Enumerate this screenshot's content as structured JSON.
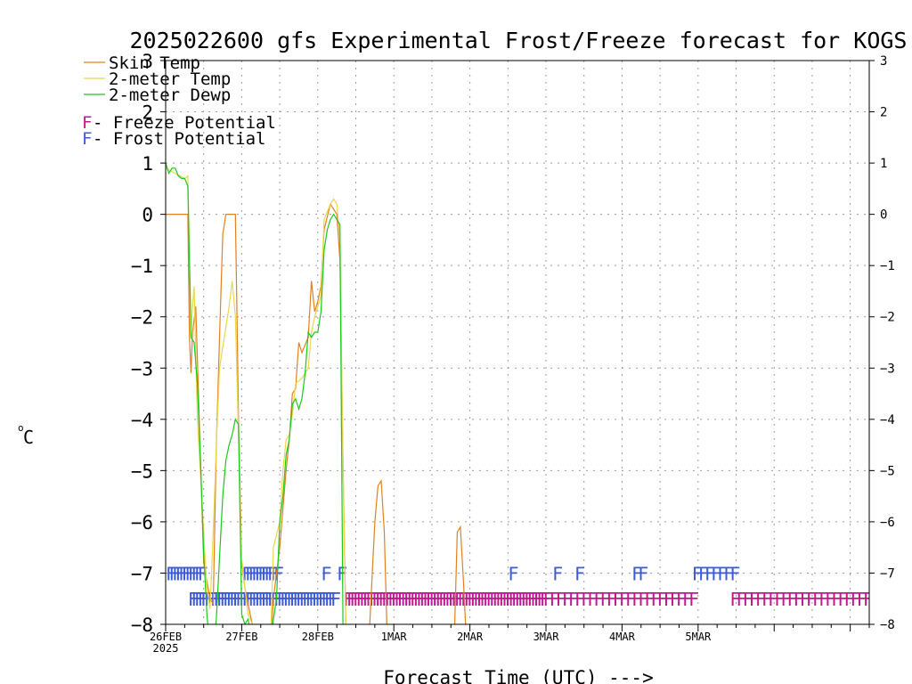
{
  "chart_data": {
    "type": "line",
    "title": "2025022600 gfs Experimental Frost/Freeze forecast for KOGS",
    "xlabel": "Forecast Time (UTC) --->",
    "ylabel": "°C",
    "ylabel_text": "C",
    "ylabel_degree": "o",
    "xlim_hours": [
      0,
      222
    ],
    "ylim": [
      -8,
      3
    ],
    "yticks": [
      3,
      2,
      1,
      0,
      -1,
      -2,
      -3,
      -4,
      -5,
      -6,
      -7,
      -8
    ],
    "yticks_labels": [
      "3",
      "2",
      "1",
      "0",
      "−1",
      "−2",
      "−3",
      "−4",
      "−5",
      "−6",
      "−7",
      "−8"
    ],
    "xticks": [
      {
        "hour": 0,
        "label": "26FEB",
        "sublabel": "2025"
      },
      {
        "hour": 24,
        "label": "27FEB"
      },
      {
        "hour": 48,
        "label": "28FEB"
      },
      {
        "hour": 72,
        "label": "1MAR"
      },
      {
        "hour": 96,
        "label": "2MAR"
      },
      {
        "hour": 120,
        "label": "3MAR"
      },
      {
        "hour": 144,
        "label": "4MAR"
      },
      {
        "hour": 168,
        "label": "5MAR"
      }
    ],
    "grid": true,
    "legend": [
      {
        "label": "Skin Temp",
        "color": "#e08020"
      },
      {
        "label": "2-meter Temp",
        "color": "#e8d84a"
      },
      {
        "label": "2-meter Dewp",
        "color": "#1cc81c"
      }
    ],
    "potential_legend": [
      {
        "symbol": "F",
        "label": " - Freeze Potential",
        "color": "#c01890"
      },
      {
        "symbol": "F",
        "label": " - Frost Potential",
        "color": "#3c5ad8"
      }
    ],
    "series": [
      {
        "name": "Skin Temp",
        "color": "#e08020",
        "points": [
          [
            0,
            0
          ],
          [
            7,
            0
          ],
          [
            7.5,
            -2.4
          ],
          [
            8,
            -3.1
          ],
          [
            8.5,
            -2.3
          ],
          [
            9.5,
            -1.8
          ],
          [
            12,
            -6.8
          ],
          [
            14,
            -7.5
          ],
          [
            15,
            -7.6
          ],
          [
            16,
            -4.5
          ],
          [
            17,
            -2.4
          ],
          [
            18,
            -0.4
          ],
          [
            19,
            0
          ],
          [
            22,
            0
          ],
          [
            22.5,
            -2
          ],
          [
            23,
            -4
          ],
          [
            24,
            -6.8
          ],
          [
            25,
            -7.3
          ],
          [
            26,
            -7.6
          ],
          [
            28,
            -8.2
          ],
          [
            30,
            -8.5
          ],
          [
            33,
            -8.5
          ],
          [
            34,
            -7.5
          ],
          [
            36,
            -6.5
          ],
          [
            38,
            -5
          ],
          [
            39,
            -4.4
          ],
          [
            40,
            -3.5
          ],
          [
            41,
            -3.4
          ],
          [
            42,
            -2.5
          ],
          [
            43,
            -2.7
          ],
          [
            45,
            -2.4
          ],
          [
            46,
            -1.3
          ],
          [
            47,
            -1.9
          ],
          [
            48,
            -1.7
          ],
          [
            49,
            -1.4
          ],
          [
            50,
            -0.3
          ],
          [
            52,
            0.2
          ],
          [
            53,
            0.1
          ],
          [
            54,
            0
          ],
          [
            55,
            -0.9
          ],
          [
            56,
            -5
          ],
          [
            57,
            -8.5
          ],
          [
            64,
            -8.5
          ],
          [
            66,
            -6
          ],
          [
            67,
            -5.3
          ],
          [
            68,
            -5.2
          ],
          [
            69,
            -6.2
          ],
          [
            70,
            -8.5
          ],
          [
            91,
            -8.5
          ],
          [
            92,
            -6.2
          ],
          [
            93,
            -6.1
          ],
          [
            94,
            -7.2
          ],
          [
            95,
            -8.5
          ],
          [
            222,
            -8.5
          ]
        ]
      },
      {
        "name": "2-meter Temp",
        "color": "#e8d84a",
        "points": [
          [
            0,
            0.9
          ],
          [
            3,
            0.8
          ],
          [
            6,
            0.7
          ],
          [
            7,
            0.75
          ],
          [
            8,
            -2.2
          ],
          [
            9,
            -1.4
          ],
          [
            10,
            -4
          ],
          [
            12,
            -6.2
          ],
          [
            13,
            -7.3
          ],
          [
            14,
            -7.7
          ],
          [
            15,
            -6.2
          ],
          [
            16,
            -4.5
          ],
          [
            17,
            -3
          ],
          [
            20,
            -1.8
          ],
          [
            21,
            -1.3
          ],
          [
            22,
            -2
          ],
          [
            24,
            -6.7
          ],
          [
            25,
            -7.3
          ],
          [
            26,
            -7.8
          ],
          [
            28,
            -8.1
          ],
          [
            30,
            -8.5
          ],
          [
            33,
            -8.5
          ],
          [
            34,
            -6.5
          ],
          [
            36,
            -6
          ],
          [
            37,
            -5
          ],
          [
            38,
            -4.4
          ],
          [
            39,
            -4.3
          ],
          [
            40,
            -3.9
          ],
          [
            41,
            -3.3
          ],
          [
            43,
            -3.2
          ],
          [
            45,
            -3
          ],
          [
            46,
            -2.3
          ],
          [
            47,
            -2
          ],
          [
            48,
            -1.8
          ],
          [
            49,
            -1.6
          ],
          [
            50,
            -0.1
          ],
          [
            52,
            0.2
          ],
          [
            53,
            0.3
          ],
          [
            54,
            0.2
          ],
          [
            55,
            -0.5
          ],
          [
            56,
            -5
          ],
          [
            57,
            -8.5
          ],
          [
            222,
            -8.5
          ]
        ]
      },
      {
        "name": "2-meter Dewp",
        "color": "#1cc81c",
        "points": [
          [
            0,
            1
          ],
          [
            1,
            0.8
          ],
          [
            2,
            0.9
          ],
          [
            3,
            0.9
          ],
          [
            4,
            0.75
          ],
          [
            5,
            0.7
          ],
          [
            6,
            0.7
          ],
          [
            7,
            0.55
          ],
          [
            8,
            -2.4
          ],
          [
            9,
            -2.5
          ],
          [
            10,
            -3.3
          ],
          [
            11,
            -4.8
          ],
          [
            12,
            -6.6
          ],
          [
            13,
            -7.8
          ],
          [
            14,
            -8.5
          ],
          [
            15,
            -8.5
          ],
          [
            16,
            -7.9
          ],
          [
            17,
            -6.7
          ],
          [
            18,
            -5.5
          ],
          [
            19,
            -4.8
          ],
          [
            20,
            -4.5
          ],
          [
            21,
            -4.3
          ],
          [
            22,
            -4
          ],
          [
            23,
            -4.1
          ],
          [
            24,
            -7.8
          ],
          [
            25,
            -8
          ],
          [
            26,
            -7.9
          ],
          [
            27,
            -8.2
          ],
          [
            28,
            -8.5
          ],
          [
            33,
            -8.5
          ],
          [
            34,
            -7.9
          ],
          [
            35,
            -7.5
          ],
          [
            36,
            -6
          ],
          [
            37,
            -5.5
          ],
          [
            38,
            -4.7
          ],
          [
            39,
            -4.4
          ],
          [
            40,
            -3.7
          ],
          [
            41,
            -3.6
          ],
          [
            42,
            -3.8
          ],
          [
            43,
            -3.6
          ],
          [
            44,
            -3.1
          ],
          [
            45,
            -2.3
          ],
          [
            46,
            -2.4
          ],
          [
            47,
            -2.3
          ],
          [
            48,
            -2.3
          ],
          [
            49,
            -1.9
          ],
          [
            50,
            -0.7
          ],
          [
            51,
            -0.3
          ],
          [
            52,
            -0.1
          ],
          [
            53,
            0
          ],
          [
            54,
            -0.1
          ],
          [
            55,
            -0.2
          ],
          [
            56,
            -8.5
          ],
          [
            222,
            -8.5
          ]
        ]
      }
    ],
    "frost_potential": [
      {
        "row": "upper",
        "hours": [
          0,
          1,
          2,
          3,
          4,
          5,
          6,
          7,
          8,
          9,
          10,
          24,
          25,
          26,
          27,
          28,
          29,
          30,
          31,
          32,
          33,
          34
        ]
      },
      {
        "row": "upper",
        "hours": [
          49,
          54,
          108,
          122,
          129,
          147,
          149,
          166,
          168,
          170,
          172,
          174,
          176,
          178
        ]
      },
      {
        "row": "lower",
        "hours": [
          7,
          8,
          9,
          10,
          11,
          12,
          13,
          14,
          15,
          16,
          17,
          18,
          19,
          20,
          21,
          22,
          23,
          24,
          25,
          26,
          27,
          28,
          29,
          30,
          31,
          32,
          33,
          34,
          35,
          36,
          37,
          38,
          39,
          40,
          41,
          42,
          43,
          44,
          45,
          46,
          47,
          48,
          49,
          50,
          51,
          52
        ]
      }
    ],
    "freeze_potential": [
      {
        "row": "lower",
        "hours": [
          56,
          57,
          58,
          59,
          60,
          61,
          62,
          63,
          64,
          65,
          66,
          67,
          68,
          69,
          70,
          71,
          72,
          73,
          74,
          75,
          76,
          77,
          78,
          79,
          80,
          81,
          82,
          83,
          84,
          85,
          86,
          87,
          88,
          89,
          90,
          91,
          92,
          93,
          94,
          95,
          96,
          97,
          98,
          99,
          100,
          101,
          102,
          103,
          104,
          105,
          106,
          107,
          108,
          109,
          110,
          111,
          112,
          113,
          114,
          115,
          116,
          117,
          118
        ]
      },
      {
        "row": "lower",
        "hours": [
          119,
          121,
          123,
          125,
          127,
          129,
          131,
          133,
          135,
          137,
          139,
          141,
          143,
          145,
          147,
          149,
          151,
          153,
          155,
          157,
          159,
          161,
          163,
          165
        ]
      },
      {
        "row": "lower",
        "hours": [
          178,
          180,
          182,
          184,
          186,
          188,
          190,
          192,
          194,
          196,
          198,
          200,
          202,
          204,
          206,
          208,
          210,
          212,
          214,
          216,
          218,
          220
        ]
      }
    ]
  }
}
